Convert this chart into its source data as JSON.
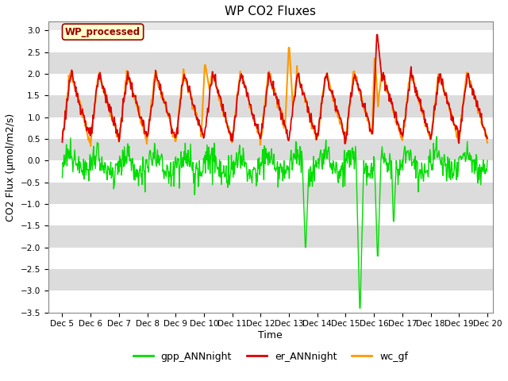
{
  "title": "WP CO2 Fluxes",
  "xlabel": "Time",
  "ylabel": "CO2 Flux (μmol/m2/s)",
  "ylim": [
    -3.5,
    3.2
  ],
  "yticks": [
    -3.5,
    -3.0,
    -2.5,
    -2.0,
    -1.5,
    -1.0,
    -0.5,
    0.0,
    0.5,
    1.0,
    1.5,
    2.0,
    2.5,
    3.0
  ],
  "xlim_days": [
    4.5,
    20.2
  ],
  "xtick_days": [
    5,
    6,
    7,
    8,
    9,
    10,
    11,
    12,
    13,
    14,
    15,
    16,
    17,
    18,
    19,
    20
  ],
  "xtick_labels": [
    "Dec 5",
    "Dec 6",
    "Dec 7",
    "Dec 8",
    "Dec 9",
    "Dec 10",
    "Dec 11",
    "Dec 12",
    "Dec 13",
    "Dec 14",
    "Dec 15",
    "Dec 16",
    "Dec 17",
    "Dec 18",
    "Dec 19",
    "Dec 20"
  ],
  "color_gpp": "#00dd00",
  "color_er": "#dd0000",
  "color_wc": "#ff9900",
  "legend_labels": [
    "gpp_ANNnight",
    "er_ANNnight",
    "wc_gf"
  ],
  "annotation_text": "WP_processed",
  "annotation_color": "#990000",
  "annotation_bg": "#ffffcc",
  "background_color": "#e8e8e8",
  "grid_color": "#ffffff",
  "linewidth_gpp": 1.0,
  "linewidth_er": 1.3,
  "linewidth_wc": 1.5,
  "title_fontsize": 11,
  "label_fontsize": 9,
  "tick_fontsize": 7.5
}
